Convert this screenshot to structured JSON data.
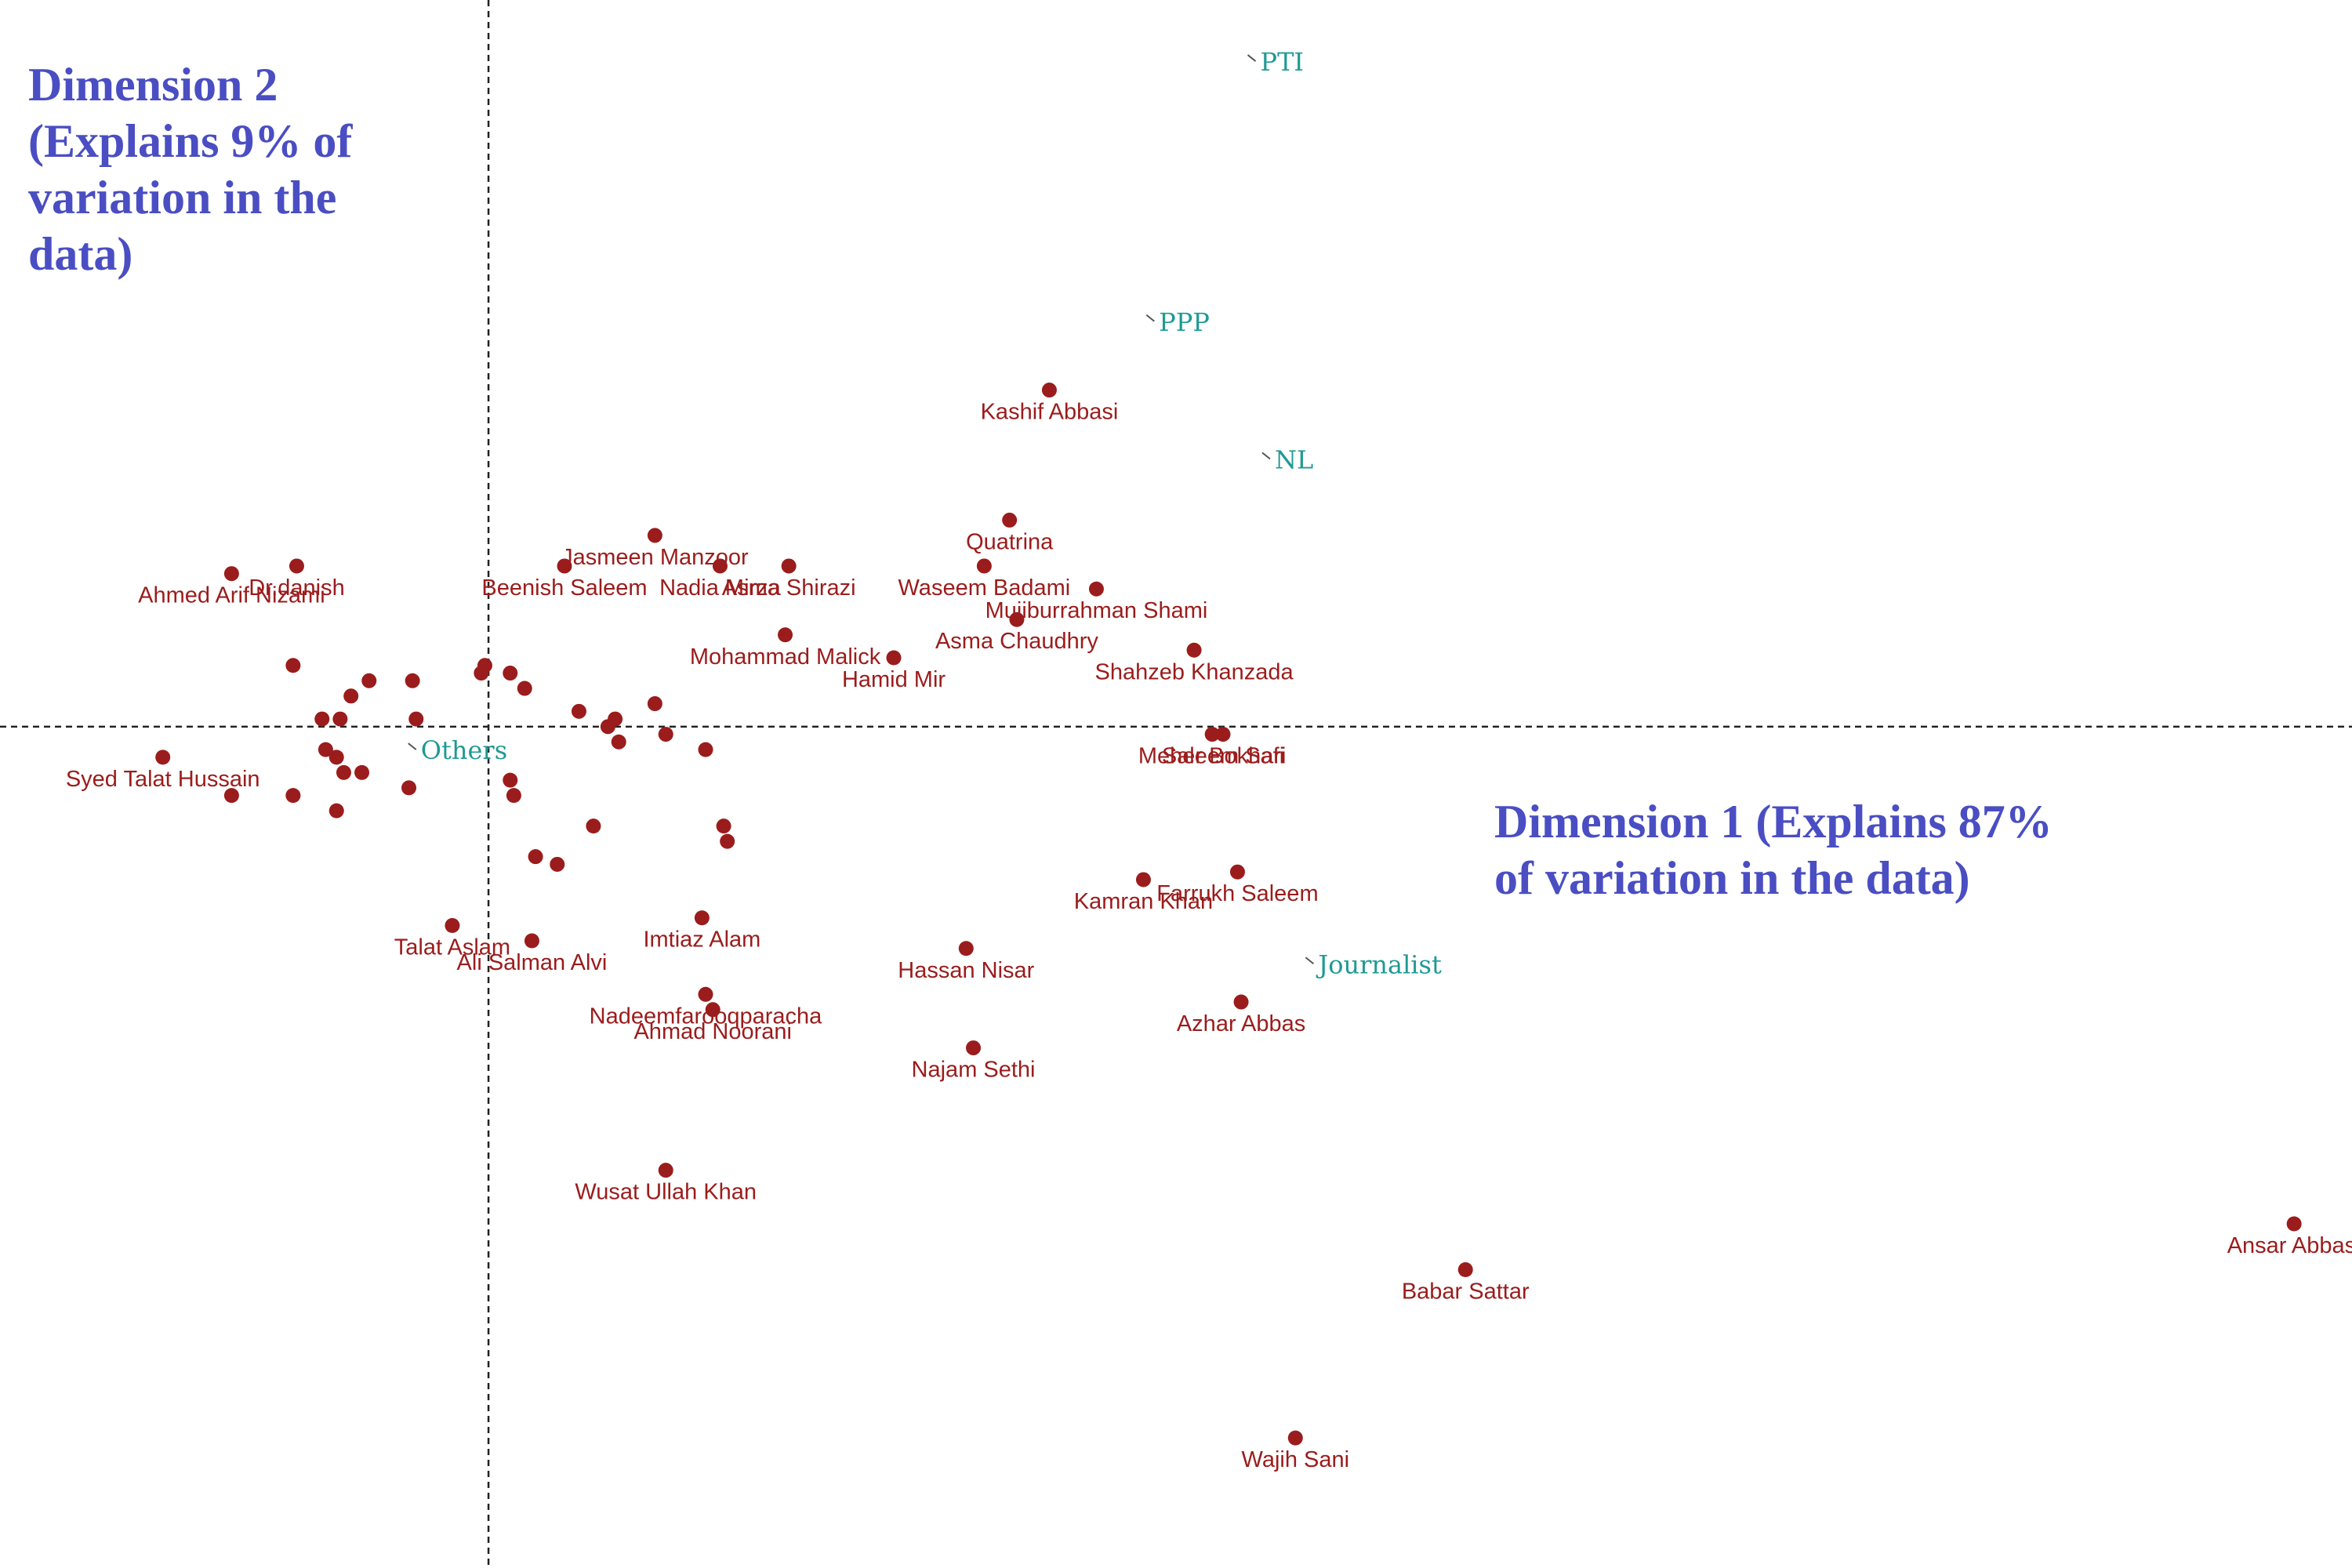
{
  "chart_data": {
    "type": "scatter",
    "xlim": [
      -1.35,
      5.15
    ],
    "ylim": [
      -1.1,
      0.95
    ],
    "axes_through_origin": true,
    "grid": false,
    "colors": {
      "individual": "#9b1c1c",
      "category": "#1f9a94",
      "dimension_title": "#4a4ec2"
    },
    "dim2_lines": [
      "Dimension 2",
      "(Explains 9% of",
      "variation in the",
      "data)"
    ],
    "dim1_lines": [
      "Dimension 1 (Explains 87%",
      "of variation in the data)"
    ],
    "categories": [
      {
        "name": "PTI",
        "x": 2.12,
        "y": 0.87
      },
      {
        "name": "PPP",
        "x": 1.84,
        "y": 0.53
      },
      {
        "name": "NL",
        "x": 2.16,
        "y": 0.35
      },
      {
        "name": "Others",
        "x": -0.2,
        "y": -0.03
      },
      {
        "name": "Journalist",
        "x": 2.28,
        "y": -0.31
      }
    ],
    "labeled_points": [
      {
        "name": "Kashif Abbasi",
        "x": 1.55,
        "y": 0.44
      },
      {
        "name": "Quatrina",
        "x": 1.44,
        "y": 0.27
      },
      {
        "name": "Waseem Badami",
        "x": 1.37,
        "y": 0.21
      },
      {
        "name": "Jasmeen Manzoor",
        "x": 0.46,
        "y": 0.25
      },
      {
        "name": "Dr.danish",
        "x": -0.53,
        "y": 0.21
      },
      {
        "name": "Ahmed Arif Nizami",
        "x": -0.71,
        "y": 0.2
      },
      {
        "name": "Beenish Saleem",
        "x": 0.21,
        "y": 0.21
      },
      {
        "name": "Nadia Mirza",
        "x": 0.64,
        "y": 0.21
      },
      {
        "name": "Asma Shirazi",
        "x": 0.83,
        "y": 0.21
      },
      {
        "name": "Mohammad Malick",
        "x": 0.82,
        "y": 0.12
      },
      {
        "name": "Mujiburrahman Shami",
        "x": 1.68,
        "y": 0.18
      },
      {
        "name": "Asma Chaudhry",
        "x": 1.46,
        "y": 0.14
      },
      {
        "name": "Hamid Mir",
        "x": 1.12,
        "y": 0.09
      },
      {
        "name": "Shahzeb Khanzada",
        "x": 1.95,
        "y": 0.1
      },
      {
        "name": "Meher Bokhari",
        "x": 2.0,
        "y": -0.01
      },
      {
        "name": "Saleem Safi",
        "x": 2.03,
        "y": -0.01
      },
      {
        "name": "Syed Talat Hussain",
        "x": -0.9,
        "y": -0.04
      },
      {
        "name": "Farrukh Saleem",
        "x": 2.07,
        "y": -0.19
      },
      {
        "name": "Kamran Khan",
        "x": 1.81,
        "y": -0.2
      },
      {
        "name": "Talat Aslam",
        "x": -0.1,
        "y": -0.26
      },
      {
        "name": "Ali Salman Alvi",
        "x": 0.12,
        "y": -0.28
      },
      {
        "name": "Imtiaz Alam",
        "x": 0.59,
        "y": -0.25
      },
      {
        "name": "Hassan Nisar",
        "x": 1.32,
        "y": -0.29
      },
      {
        "name": "Nadeemfarooqparacha",
        "x": 0.6,
        "y": -0.35
      },
      {
        "name": "Ahmad Noorani",
        "x": 0.62,
        "y": -0.37
      },
      {
        "name": "Azhar Abbas",
        "x": 2.08,
        "y": -0.36
      },
      {
        "name": "Najam Sethi",
        "x": 1.34,
        "y": -0.42
      },
      {
        "name": "Wusat Ullah Khan",
        "x": 0.49,
        "y": -0.58
      },
      {
        "name": "Ansar Abbasi",
        "x": 4.99,
        "y": -0.65
      },
      {
        "name": "Babar Sattar",
        "x": 2.7,
        "y": -0.71
      },
      {
        "name": "Wajih Sani",
        "x": 2.23,
        "y": -0.93
      }
    ],
    "unlabeled_points": [
      [
        -0.54,
        0.08
      ],
      [
        -0.46,
        0.01
      ],
      [
        -0.41,
        0.01
      ],
      [
        -0.38,
        0.04
      ],
      [
        -0.33,
        0.06
      ],
      [
        -0.21,
        0.06
      ],
      [
        -0.2,
        0.01
      ],
      [
        -0.54,
        -0.09
      ],
      [
        -0.42,
        -0.04
      ],
      [
        -0.35,
        -0.06
      ],
      [
        -0.22,
        -0.08
      ],
      [
        -0.71,
        -0.09
      ],
      [
        -0.42,
        -0.11
      ],
      [
        -0.45,
        -0.03
      ],
      [
        -0.4,
        -0.06
      ],
      [
        -0.01,
        0.08
      ],
      [
        0.06,
        0.07
      ],
      [
        0.1,
        0.05
      ],
      [
        -0.02,
        0.07
      ],
      [
        0.25,
        0.02
      ],
      [
        0.33,
        0.0
      ],
      [
        0.35,
        0.01
      ],
      [
        0.36,
        -0.02
      ],
      [
        0.46,
        0.03
      ],
      [
        0.49,
        -0.01
      ],
      [
        0.6,
        -0.03
      ],
      [
        0.06,
        -0.07
      ],
      [
        0.07,
        -0.09
      ],
      [
        0.29,
        -0.13
      ],
      [
        0.13,
        -0.17
      ],
      [
        0.19,
        -0.18
      ],
      [
        0.65,
        -0.13
      ],
      [
        0.66,
        -0.15
      ]
    ]
  }
}
